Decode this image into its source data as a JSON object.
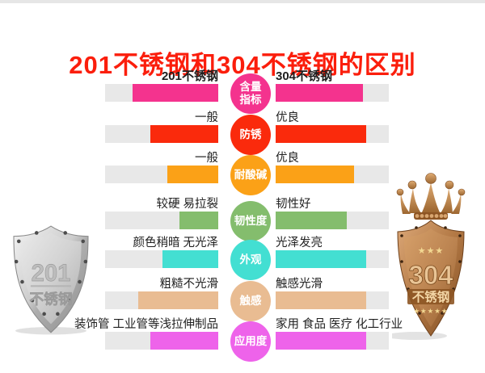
{
  "page": {
    "title": "201不锈钢和304不锈钢的区别"
  },
  "colors": {
    "title_red": "#fb1e0c",
    "track_gray": "#e8e8e8",
    "label_text": "#1f1f1f"
  },
  "chart_data": {
    "type": "bar",
    "orientation": "horizontal-paired",
    "title": "201不锈钢和304不锈钢的区别",
    "series_names": [
      "201不锈钢",
      "304不锈钢"
    ],
    "categories": [
      "含量指标",
      "防锈",
      "耐酸碱",
      "韧性度",
      "外观",
      "触感",
      "应用度"
    ],
    "rows": [
      {
        "metric": "含量指标",
        "metric_display": "含量\n指标",
        "color": "#f4338e",
        "left": {
          "label": "201不锈钢",
          "pct": 76
        },
        "right": {
          "label": "304不锈钢",
          "pct": 77
        }
      },
      {
        "metric": "防锈",
        "metric_display": "防锈",
        "color": "#fa2a0c",
        "left": {
          "label": "一般",
          "pct": 60
        },
        "right": {
          "label": "优良",
          "pct": 80
        }
      },
      {
        "metric": "耐酸碱",
        "metric_display": "耐酸碱",
        "color": "#fba117",
        "left": {
          "label": "一般",
          "pct": 45
        },
        "right": {
          "label": "优良",
          "pct": 69
        }
      },
      {
        "metric": "韧性度",
        "metric_display": "韧性度",
        "color": "#84bd6d",
        "left": {
          "label": "较硬 易拉裂",
          "pct": 34
        },
        "right": {
          "label": "韧性好",
          "pct": 63
        }
      },
      {
        "metric": "外观",
        "metric_display": "外观",
        "color": "#43dfd2",
        "left": {
          "label": "颜色稍暗 无光泽",
          "pct": 49
        },
        "right": {
          "label": "光泽发亮",
          "pct": 80
        }
      },
      {
        "metric": "触感",
        "metric_display": "触感",
        "color": "#e9bc92",
        "left": {
          "label": "粗糙不光滑",
          "pct": 71
        },
        "right": {
          "label": "触感光滑",
          "pct": 80
        }
      },
      {
        "metric": "应用度",
        "metric_display": "应用度",
        "color": "#ee63ea",
        "left": {
          "label": "装饰管 工业管等浅拉伸制品",
          "pct": 60
        },
        "right": {
          "label": "家用 食品 医疗 化工行业",
          "pct": 80
        }
      }
    ]
  },
  "badges": {
    "left": {
      "code": "201",
      "name": "不锈钢"
    },
    "right": {
      "code": "304",
      "name": "不锈钢",
      "stars_top": "★★★",
      "stars_bottom": "★★★★★"
    }
  }
}
